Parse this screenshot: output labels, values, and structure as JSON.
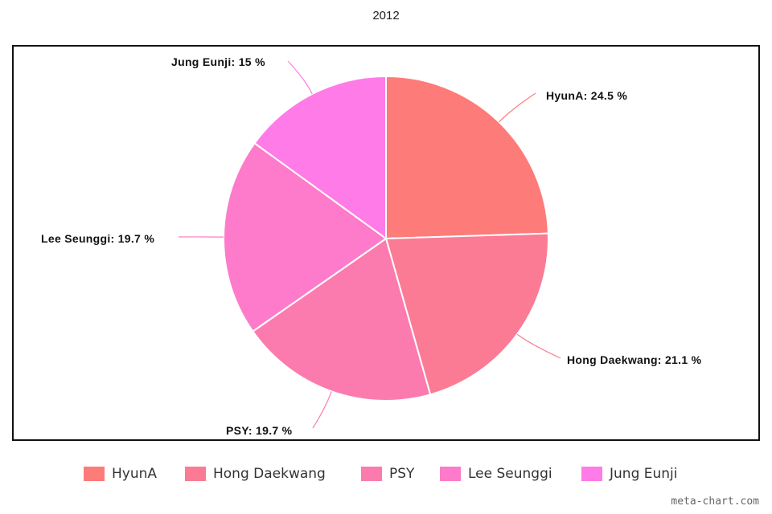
{
  "chart_data": {
    "type": "pie",
    "title": "2012",
    "categories": [
      "HyunA",
      "Hong Daekwang",
      "PSY",
      "Lee Seunggi",
      "Jung Eunji"
    ],
    "values": [
      24.5,
      21.1,
      19.7,
      19.7,
      15
    ],
    "slice_labels": [
      "HyunA: 24.5 %",
      "Hong Daekwang: 21.1 %",
      "PSY: 19.7 %",
      "Lee Seunggi: 19.7 %",
      "Jung Eunji: 15 %"
    ],
    "colors": [
      "#fd7b78",
      "#fb7b94",
      "#fc7bae",
      "#fd7bca",
      "#ff7be8"
    ],
    "legend_position": "bottom",
    "start_angle": "12 o'clock",
    "direction": "clockwise"
  },
  "legend": {
    "items": [
      "HyunA",
      "Hong Daekwang",
      "PSY",
      "Lee Seunggi",
      "Jung Eunji"
    ]
  },
  "watermark": "meta-chart.com"
}
